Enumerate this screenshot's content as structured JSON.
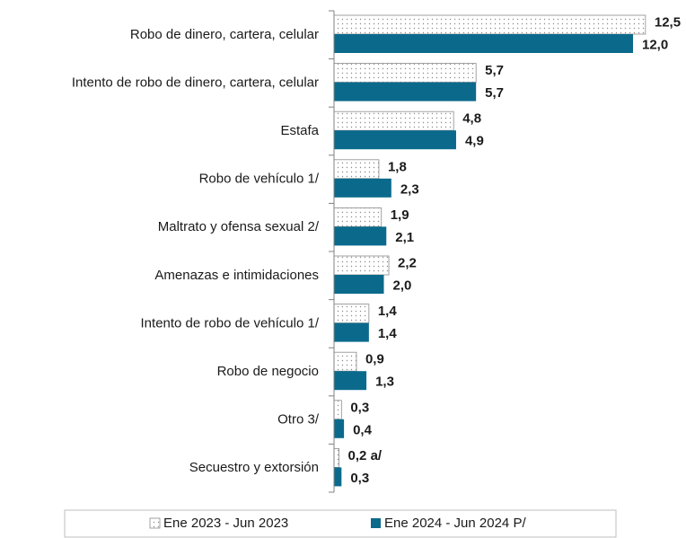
{
  "chart_data": {
    "type": "hbar",
    "categories": [
      "Robo de dinero, cartera, celular",
      "Intento de robo de dinero, cartera, celular",
      "Estafa",
      "Robo  de vehículo 1/",
      "Maltrato y ofensa sexual 2/",
      "Amenazas e intimidaciones",
      "Intento de robo de vehículo 1/",
      "Robo de negocio",
      "Otro 3/",
      "Secuestro y extorsión"
    ],
    "series": [
      {
        "name": "Ene 2023 - Jun 2023",
        "color": "#8c8c8c",
        "pattern": "dots",
        "values": [
          12.5,
          5.7,
          4.8,
          1.8,
          1.9,
          2.2,
          1.4,
          0.9,
          0.3,
          0.2
        ],
        "value_labels": [
          "12,5",
          "5,7",
          "4,8",
          "1,8",
          "1,9",
          "2,2",
          "1,4",
          "0,9",
          "0,3",
          "0,2 a/"
        ]
      },
      {
        "name": "Ene 2024 - Jun 2024 P/",
        "color": "#0b6a8c",
        "values": [
          12.0,
          5.7,
          4.9,
          2.3,
          2.1,
          2.0,
          1.4,
          1.3,
          0.4,
          0.3
        ],
        "value_labels": [
          "12,0",
          "5,7",
          "4,9",
          "2,3",
          "2,1",
          "2,0",
          "1,4",
          "1,3",
          "0,4",
          "0,3"
        ]
      }
    ],
    "legend": "bottom"
  }
}
